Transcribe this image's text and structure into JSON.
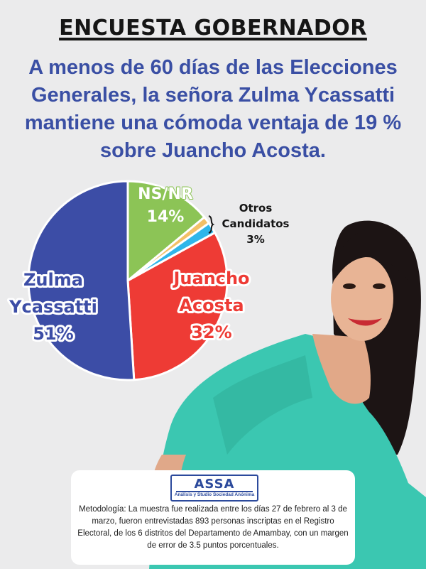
{
  "header": {
    "title": "ENCUESTA GOBERNADOR",
    "subtitle": "A menos de 60 días de las Elecciones Generales, la señora Zulma Ycassatti mantiene una cómoda ventaja de 19 % sobre Juancho Acosta."
  },
  "chart_data": {
    "type": "pie",
    "slices": [
      {
        "label": "Zulma Ycassatti",
        "lines": [
          "Zulma",
          "Ycassatti",
          "51%"
        ],
        "value": 51,
        "color": "#3c4da6"
      },
      {
        "label": "NS/NR",
        "lines": [
          "NS/NR",
          "14%"
        ],
        "value": 14,
        "color": "#8cc456"
      },
      {
        "label": "Otros Candidatos",
        "lines": [
          "Otros",
          "Candidatos",
          "3%"
        ],
        "value": 3,
        "color": "#f3c068",
        "color2": "#2fb6ea"
      },
      {
        "label": "Juancho Acosta",
        "lines": [
          "Juancho",
          "Acosta",
          "32%"
        ],
        "value": 32,
        "color": "#ee3b35"
      }
    ]
  },
  "footer": {
    "logo_text": "ASSA",
    "logo_subtext": "Análisis y Studio Sociedad Anónima",
    "methodology": "Metodología: La muestra fue realizada entre los días 27 de febrero al 3 de marzo, fueron entrevistadas 893 personas inscriptas en el Registro Electoral, de los 6 distritos del Departamento de Amambay, con un margen de error de 3.5 puntos porcentuales."
  },
  "colors": {
    "background": "#ebebec",
    "subtitle": "#3a4fa4",
    "shirt": "#3bc7b1",
    "hair": "#1c1414"
  }
}
